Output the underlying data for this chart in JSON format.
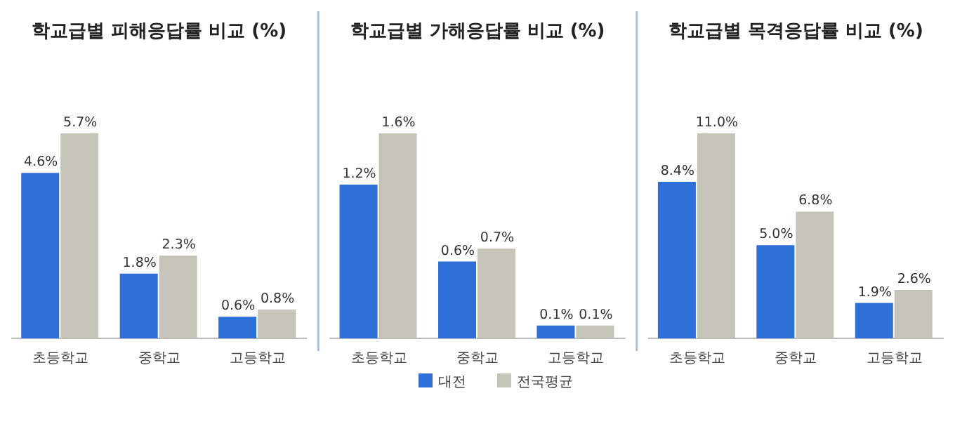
{
  "chart_data": [
    {
      "type": "bar",
      "title": "학교급별 피해응답률 비교 (%)",
      "categories": [
        "초등학교",
        "중학교",
        "고등학교"
      ],
      "legend": false,
      "series": [
        {
          "color": "#2f6fd8",
          "values": [
            4.6,
            1.8,
            0.6
          ],
          "value_labels": [
            "4.6%",
            "1.8%",
            "0.6%"
          ]
        },
        {
          "color": "#c6c4b8",
          "values": [
            5.7,
            2.3,
            0.8
          ],
          "value_labels": [
            "5.7%",
            "2.3%",
            "0.8%"
          ]
        }
      ]
    },
    {
      "type": "bar",
      "title": "학교급별 가해응답률 비교 (%)",
      "categories": [
        "초등학교",
        "중학교",
        "고등학교"
      ],
      "legend": "bottom",
      "series": [
        {
          "name": "대전",
          "color": "#2f6fd8",
          "values": [
            1.2,
            0.6,
            0.1
          ],
          "value_labels": [
            "1.2%",
            "0.6%",
            "0.1%"
          ]
        },
        {
          "name": "전국평균",
          "color": "#c6c4b8",
          "values": [
            1.6,
            0.7,
            0.1
          ],
          "value_labels": [
            "1.6%",
            "0.7%",
            "0.1%"
          ]
        }
      ]
    },
    {
      "type": "bar",
      "title": "학교급별 목격응답률 비교 (%)",
      "categories": [
        "초등학교",
        "중학교",
        "고등학교"
      ],
      "legend": false,
      "series": [
        {
          "color": "#2f6fd8",
          "values": [
            8.4,
            5.0,
            1.9
          ],
          "value_labels": [
            "8.4%",
            "5.0%",
            "1.9%"
          ]
        },
        {
          "color": "#c6c4b8",
          "values": [
            11.0,
            6.8,
            2.6
          ],
          "value_labels": [
            "11.0%",
            "6.8%",
            "2.6%"
          ]
        }
      ]
    }
  ]
}
